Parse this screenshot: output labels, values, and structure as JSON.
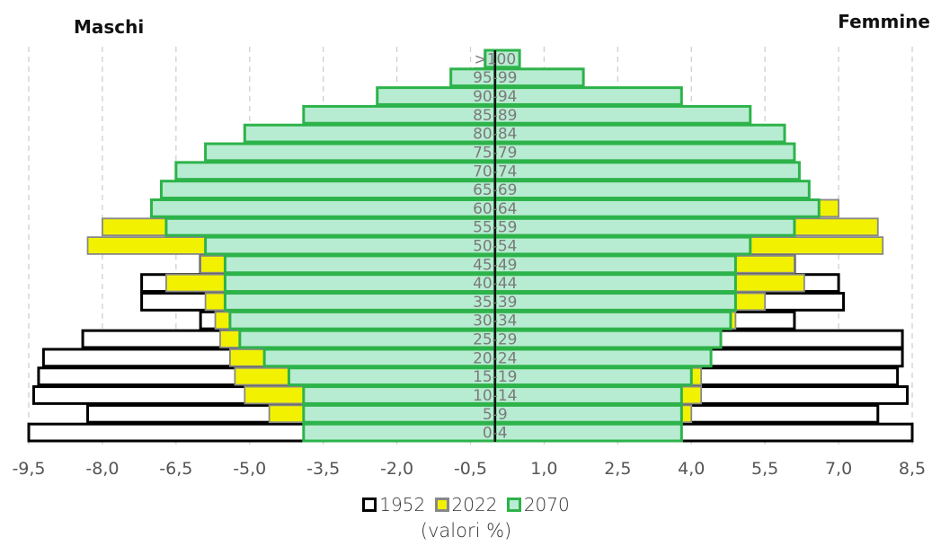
{
  "labels": {
    "left_title": "Maschi",
    "right_title": "Femmine",
    "unit_note": "(valori %)"
  },
  "chart_data": {
    "type": "bar",
    "orientation": "horizontal",
    "subtype": "population-pyramid",
    "categories": [
      "0-4",
      "5-9",
      "10-14",
      "15-19",
      "20-24",
      "25-29",
      "30-34",
      "35-39",
      "40-44",
      "45-49",
      "50-54",
      "55-59",
      "60-64",
      "65-69",
      "70-74",
      "75-79",
      "80-84",
      "85-89",
      "90-94",
      "95-99",
      ">100"
    ],
    "x_ticks": [
      "-9,5",
      "-8,0",
      "-6,5",
      "-5,0",
      "-3,5",
      "-2,0",
      "-0,5",
      "1,0",
      "2,5",
      "4,0",
      "5,5",
      "7,0",
      "8,5"
    ],
    "xlim": [
      -9.5,
      8.5
    ],
    "grid": true,
    "legend_position": "bottom",
    "series": [
      {
        "name": "1952",
        "fill": "#ffffff",
        "stroke": "#000000",
        "males": [
          -9.5,
          -8.3,
          -9.4,
          -9.3,
          -9.2,
          -8.4,
          -6.0,
          -7.2,
          -7.2,
          -6.0,
          -5.1,
          -4.1,
          -3.6,
          -3.1,
          -2.3,
          -1.4,
          -0.9,
          -0.6,
          -0.5,
          -0.4,
          -0.2
        ],
        "females": [
          8.5,
          7.8,
          8.4,
          8.2,
          8.3,
          8.3,
          6.1,
          7.1,
          7.0,
          6.1,
          5.4,
          4.8,
          4.3,
          3.5,
          2.5,
          1.6,
          0.9,
          0.5,
          0.4,
          0.3,
          0.2
        ]
      },
      {
        "name": "2022",
        "fill": "#f2f200",
        "stroke": "#888888",
        "males": [
          -3.7,
          -4.6,
          -5.1,
          -5.3,
          -5.4,
          -5.6,
          -5.7,
          -5.9,
          -6.7,
          -6.0,
          -8.3,
          -8.0,
          -6.8,
          -5.8,
          -5.4,
          -4.1,
          -3.3,
          -1.8,
          -0.8,
          -0.3,
          -0.1
        ],
        "females": [
          3.5,
          4.0,
          4.2,
          4.2,
          4.4,
          4.3,
          4.9,
          5.5,
          6.3,
          6.1,
          7.9,
          7.8,
          7.0,
          6.1,
          5.8,
          5.0,
          4.3,
          2.8,
          1.4,
          0.4,
          0.1
        ]
      },
      {
        "name": "2070",
        "fill": "#b8ecd2",
        "stroke": "#2db34a",
        "males": [
          -3.9,
          -3.9,
          -3.9,
          -4.2,
          -4.7,
          -5.2,
          -5.4,
          -5.5,
          -5.5,
          -5.5,
          -5.9,
          -6.7,
          -7.0,
          -6.8,
          -6.5,
          -5.9,
          -5.1,
          -3.9,
          -2.4,
          -0.9,
          -0.2
        ],
        "females": [
          3.8,
          3.8,
          3.8,
          4.0,
          4.4,
          4.6,
          4.8,
          4.9,
          4.9,
          4.9,
          5.2,
          6.1,
          6.6,
          6.4,
          6.2,
          6.1,
          5.9,
          5.2,
          3.8,
          1.8,
          0.5
        ]
      }
    ]
  }
}
